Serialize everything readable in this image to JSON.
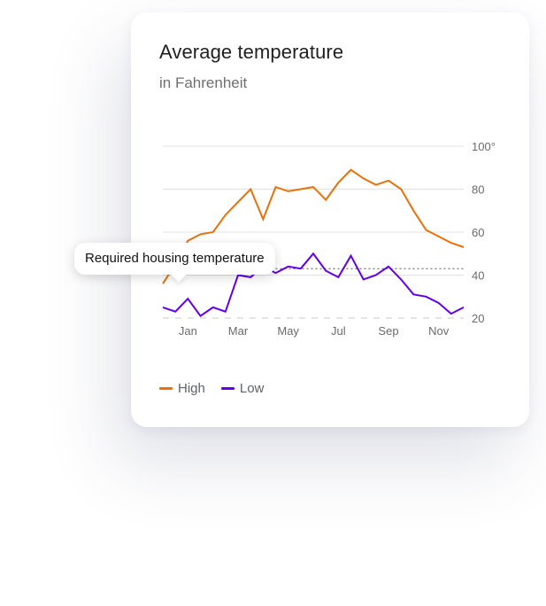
{
  "card": {
    "title": "Average temperature",
    "subtitle": "in Fahrenheit"
  },
  "tooltip": {
    "text": "Required housing temperature"
  },
  "legend": [
    {
      "label": "High",
      "color": "#e8710a"
    },
    {
      "label": "Low",
      "color": "#6200ea"
    }
  ],
  "chart_data": {
    "type": "line",
    "title": "Average temperature",
    "subtitle": "in Fahrenheit",
    "ylim": [
      20,
      100
    ],
    "yticks": [
      20,
      40,
      60,
      80,
      100
    ],
    "ytick_labels": [
      "20",
      "40",
      "60",
      "80",
      "100°"
    ],
    "xlim": [
      0,
      12
    ],
    "xticks": [
      1,
      3,
      5,
      7,
      9,
      11
    ],
    "xtick_labels": [
      "Jan",
      "Mar",
      "May",
      "Jul",
      "Sep",
      "Nov"
    ],
    "grid": true,
    "legend_position": "bottom-left",
    "reference_line": {
      "value": 43,
      "label": "Required housing temperature"
    },
    "series": [
      {
        "name": "High",
        "color": "#e8710a",
        "x": [
          0,
          0.5,
          1,
          1.5,
          2,
          2.5,
          3,
          3.5,
          4,
          4.5,
          5,
          5.5,
          6,
          6.5,
          7,
          7.5,
          8,
          8.5,
          9,
          9.5,
          10,
          10.5,
          11,
          11.5,
          12
        ],
        "values": [
          36,
          45,
          56,
          59,
          60,
          68,
          74,
          80,
          66,
          81,
          79,
          80,
          81,
          75,
          83,
          89,
          85,
          82,
          84,
          80,
          70,
          61,
          58,
          55,
          53
        ]
      },
      {
        "name": "Low",
        "color": "#6200ea",
        "x": [
          0,
          0.5,
          1,
          1.5,
          2,
          2.5,
          3,
          3.5,
          4,
          4.5,
          5,
          5.5,
          6,
          6.5,
          7,
          7.5,
          8,
          8.5,
          9,
          9.5,
          10,
          10.5,
          11,
          11.5,
          12
        ],
        "values": [
          25,
          23,
          29,
          21,
          25,
          23,
          40,
          39,
          44,
          41,
          44,
          43,
          50,
          42,
          39,
          49,
          38,
          40,
          44,
          38,
          31,
          30,
          27,
          22,
          25
        ]
      }
    ]
  }
}
